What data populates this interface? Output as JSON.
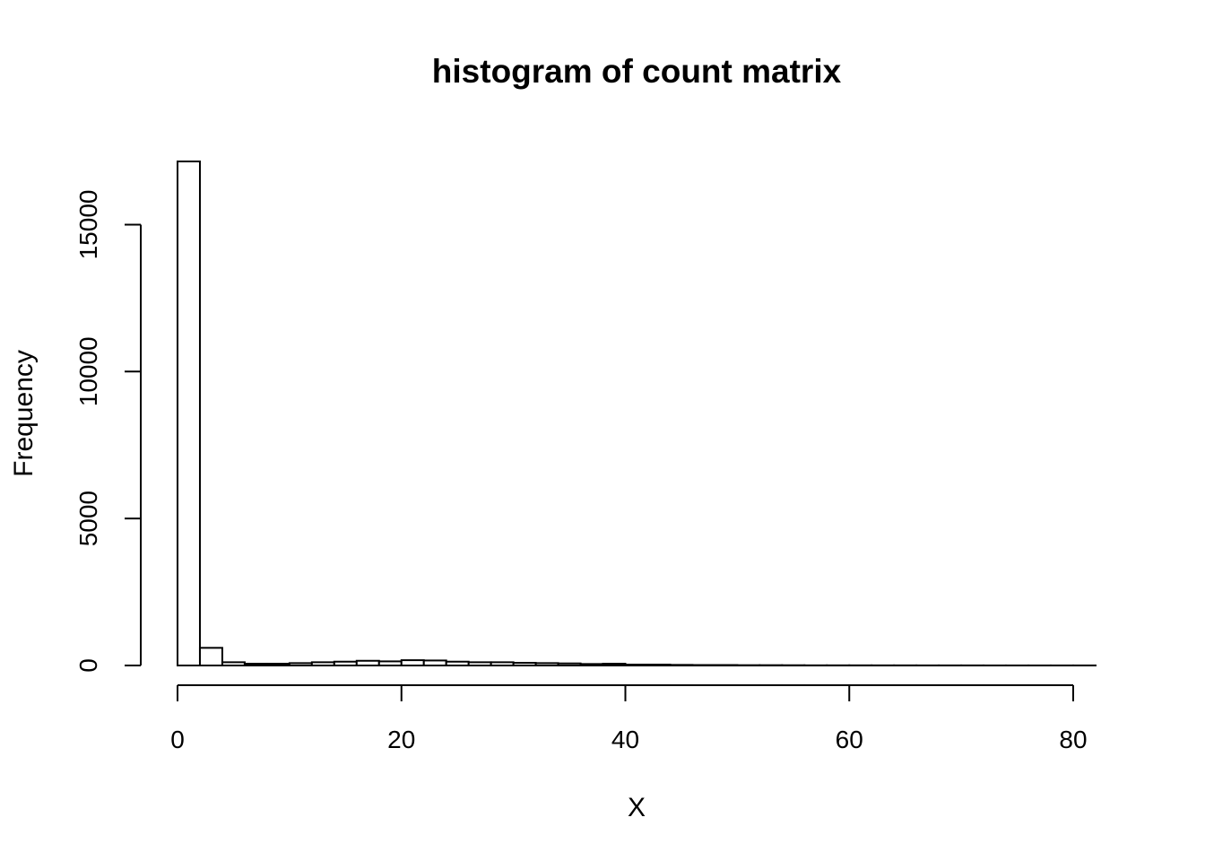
{
  "chart_data": {
    "type": "bar",
    "title": "histogram of count matrix",
    "xlabel": "X",
    "ylabel": "Frequency",
    "bin_width": 2,
    "bins_start": [
      0,
      2,
      4,
      6,
      8,
      10,
      12,
      14,
      16,
      18,
      20,
      22,
      24,
      26,
      28,
      30,
      32,
      34,
      36,
      38,
      40,
      42,
      44,
      46,
      48,
      50,
      52,
      54,
      56,
      58,
      60,
      62,
      64,
      66,
      68,
      70,
      72,
      74,
      76,
      78,
      80
    ],
    "values": [
      17150,
      600,
      110,
      60,
      60,
      80,
      110,
      130,
      160,
      140,
      180,
      170,
      130,
      110,
      110,
      90,
      80,
      70,
      50,
      60,
      30,
      30,
      20,
      15,
      15,
      10,
      10,
      8,
      5,
      5,
      5,
      4,
      4,
      3,
      3,
      3,
      2,
      2,
      2,
      2,
      2
    ],
    "xlim": [
      0,
      82
    ],
    "ylim": [
      0,
      17150
    ],
    "x_ticks": [
      0,
      20,
      40,
      60,
      80
    ],
    "y_ticks": [
      0,
      5000,
      10000,
      15000
    ],
    "x_tick_labels": [
      "0",
      "20",
      "40",
      "60",
      "80"
    ],
    "y_tick_labels": [
      "0",
      "5000",
      "10000",
      "15000"
    ],
    "grid": false,
    "legend": "none"
  }
}
